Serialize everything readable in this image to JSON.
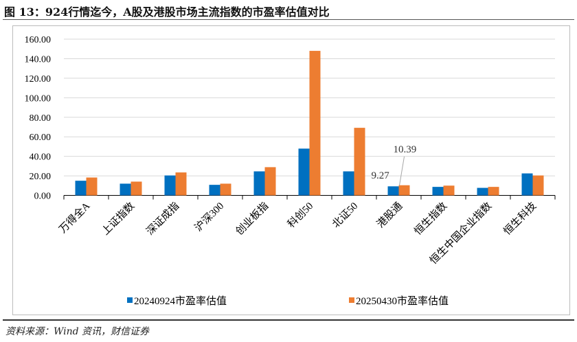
{
  "title": "图 13：924行情迄今，A股及港股市场主流指数的市盈率估值对比",
  "source": "资料来源：Wind 资讯，财信证券",
  "chart_data": {
    "type": "bar",
    "categories": [
      "万得全A",
      "上证指数",
      "深证成指",
      "沪深300",
      "创业板指",
      "科创50",
      "北证50",
      "港股通",
      "恒生指数",
      "恒生中国企业指数",
      "恒生科技"
    ],
    "series": [
      {
        "name": "20240924市盈率估值",
        "color": "#0070c0",
        "values": [
          15.0,
          12.0,
          20.4,
          10.8,
          24.6,
          47.9,
          24.6,
          9.27,
          8.7,
          7.7,
          22.5
        ]
      },
      {
        "name": "20250430市盈率估值",
        "color": "#ed7d31",
        "values": [
          18.3,
          14.1,
          23.5,
          12.0,
          28.9,
          148.0,
          69.2,
          10.39,
          10.0,
          8.7,
          20.4
        ]
      }
    ],
    "data_labels": [
      {
        "category": "港股通",
        "series": 0,
        "text": "9.27"
      },
      {
        "category": "港股通",
        "series": 1,
        "text": "10.39"
      }
    ],
    "yticks": [
      "0.00",
      "20.00",
      "40.00",
      "60.00",
      "80.00",
      "100.00",
      "120.00",
      "140.00",
      "160.00"
    ],
    "ylim": [
      0,
      160
    ],
    "grid": true,
    "legend": "bottom"
  }
}
